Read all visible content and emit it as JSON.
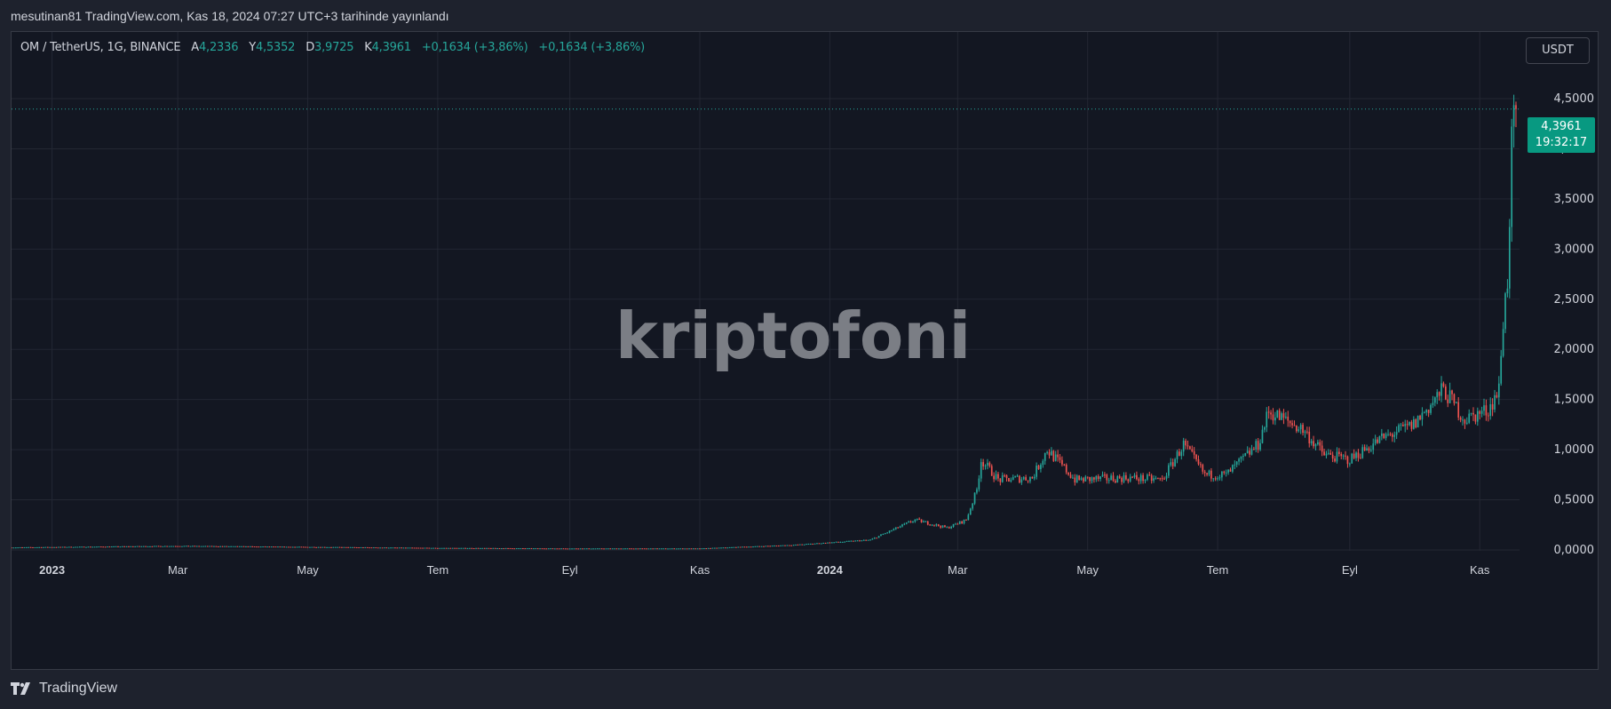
{
  "header": {
    "caption": "mesutinan81 TradingView.com, Kas 18, 2024 07:27 UTC+3 tarihinde yayınlandı"
  },
  "legend": {
    "symbol": "OM / TetherUS, 1G, BINANCE",
    "open_label": "A",
    "open_value": "4,2336",
    "high_label": "Y",
    "high_value": "4,5352",
    "low_label": "D",
    "low_value": "3,9725",
    "close_label": "K",
    "close_value": "4,3961",
    "change_1": "+0,1634 (+3,86%)",
    "change_2": "+0,1634 (+3,86%)"
  },
  "currency_button": {
    "label": "USDT"
  },
  "watermark": {
    "text": "kriptofoni"
  },
  "price_badge": {
    "price": "4,3961",
    "countdown": "19:32:17"
  },
  "footer": {
    "brand": "TradingView"
  },
  "colors": {
    "up": "#26a69a",
    "down": "#ef5350",
    "badge": "#089981",
    "grid": "#232733",
    "background": "#131722"
  },
  "chart_data": {
    "type": "candlestick",
    "title": "",
    "interval": "1G",
    "exchange": "BINANCE",
    "y_axis": {
      "min": 0,
      "max": 4.5,
      "ticks": [
        "0,0000",
        "0,5000",
        "1,0000",
        "1,5000",
        "2,0000",
        "2,5000",
        "3,0000",
        "3,5000",
        "4,0000",
        "4,5000"
      ],
      "tick_values": [
        0,
        0.5,
        1,
        1.5,
        2,
        2.5,
        3,
        3.5,
        4,
        4.5
      ]
    },
    "x_axis": {
      "start": "2022-12-13",
      "end": "2024-11-18",
      "ticks": [
        {
          "date": "2023-01-01",
          "label": "2023",
          "bold": true
        },
        {
          "date": "2023-03-01",
          "label": "Mar"
        },
        {
          "date": "2023-05-01",
          "label": "May"
        },
        {
          "date": "2023-07-01",
          "label": "Tem"
        },
        {
          "date": "2023-09-01",
          "label": "Eyl"
        },
        {
          "date": "2023-11-01",
          "label": "Kas"
        },
        {
          "date": "2024-01-01",
          "label": "2024",
          "bold": true
        },
        {
          "date": "2024-03-01",
          "label": "Mar"
        },
        {
          "date": "2024-05-01",
          "label": "May"
        },
        {
          "date": "2024-07-01",
          "label": "Tem"
        },
        {
          "date": "2024-09-01",
          "label": "Eyl"
        },
        {
          "date": "2024-11-01",
          "label": "Kas"
        }
      ]
    },
    "last_price": 4.3961,
    "approx_close_path": [
      {
        "date": "2022-12-13",
        "close": 0.025
      },
      {
        "date": "2023-03-01",
        "close": 0.04
      },
      {
        "date": "2023-05-01",
        "close": 0.03
      },
      {
        "date": "2023-07-01",
        "close": 0.02
      },
      {
        "date": "2023-09-01",
        "close": 0.015
      },
      {
        "date": "2023-11-01",
        "close": 0.015
      },
      {
        "date": "2023-12-15",
        "close": 0.05
      },
      {
        "date": "2024-01-20",
        "close": 0.1
      },
      {
        "date": "2024-02-10",
        "close": 0.3
      },
      {
        "date": "2024-02-25",
        "close": 0.22
      },
      {
        "date": "2024-03-05",
        "close": 0.3
      },
      {
        "date": "2024-03-10",
        "close": 0.6
      },
      {
        "date": "2024-03-12",
        "close": 0.9
      },
      {
        "date": "2024-03-20",
        "close": 0.7
      },
      {
        "date": "2024-04-05",
        "close": 0.72
      },
      {
        "date": "2024-04-12",
        "close": 1.0
      },
      {
        "date": "2024-04-25",
        "close": 0.7
      },
      {
        "date": "2024-05-20",
        "close": 0.72
      },
      {
        "date": "2024-06-05",
        "close": 0.7
      },
      {
        "date": "2024-06-15",
        "close": 1.05
      },
      {
        "date": "2024-06-25",
        "close": 0.75
      },
      {
        "date": "2024-07-05",
        "close": 0.75
      },
      {
        "date": "2024-07-20",
        "close": 1.05
      },
      {
        "date": "2024-07-25",
        "close": 1.38
      },
      {
        "date": "2024-08-10",
        "close": 1.2
      },
      {
        "date": "2024-08-20",
        "close": 0.95
      },
      {
        "date": "2024-09-01",
        "close": 0.9
      },
      {
        "date": "2024-09-15",
        "close": 1.1
      },
      {
        "date": "2024-10-01",
        "close": 1.25
      },
      {
        "date": "2024-10-15",
        "close": 1.6
      },
      {
        "date": "2024-10-25",
        "close": 1.3
      },
      {
        "date": "2024-11-05",
        "close": 1.4
      },
      {
        "date": "2024-11-10",
        "close": 1.6
      },
      {
        "date": "2024-11-12",
        "close": 2.3
      },
      {
        "date": "2024-11-14",
        "close": 2.7
      },
      {
        "date": "2024-11-16",
        "close": 4.0
      },
      {
        "date": "2024-11-18",
        "close": 4.3961
      }
    ]
  }
}
